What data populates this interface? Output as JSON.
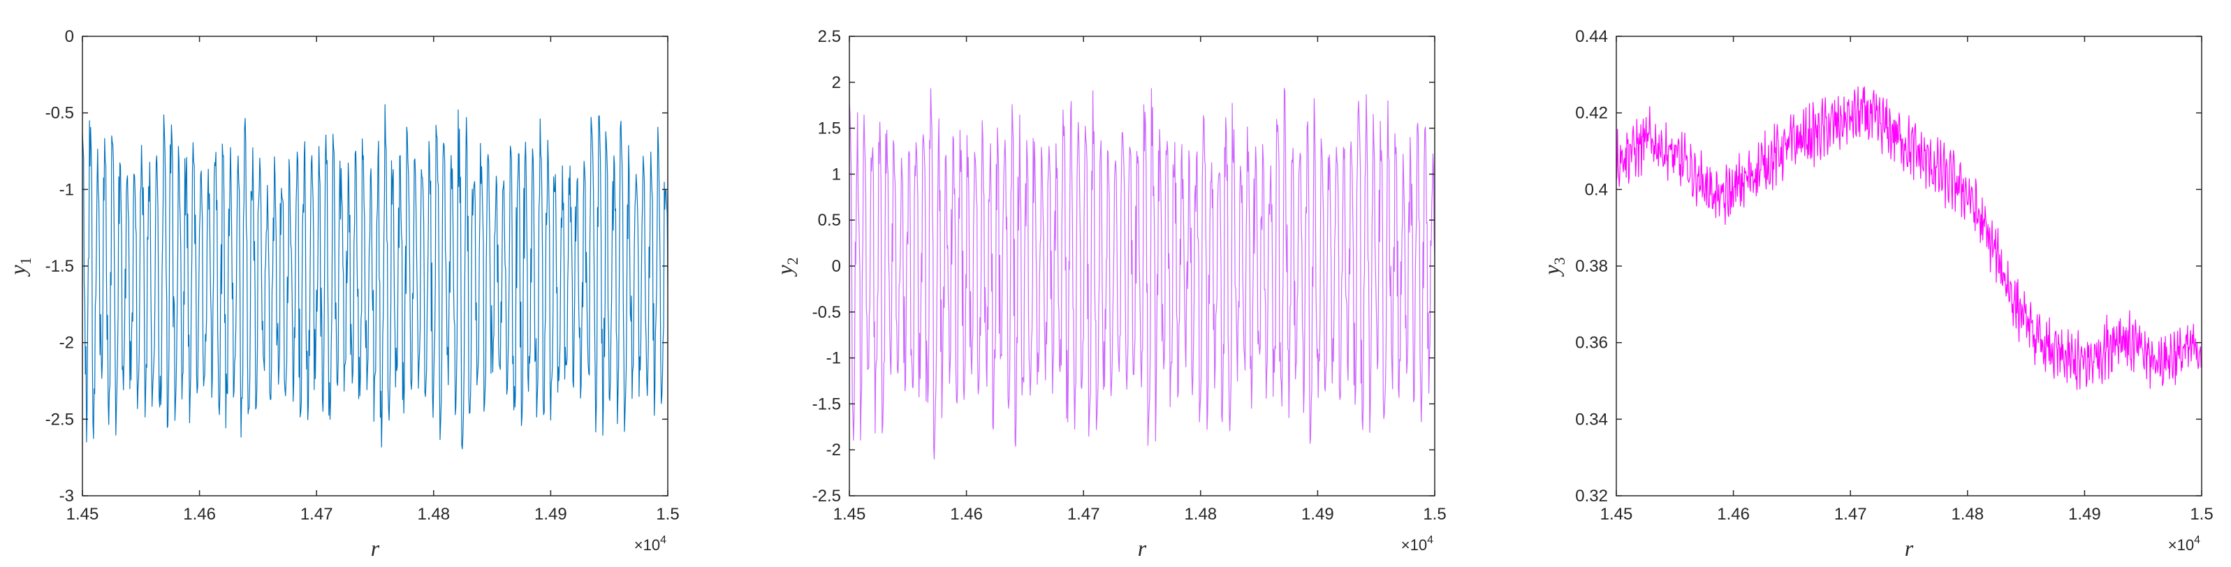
{
  "chart_data": [
    {
      "type": "line",
      "xlabel": "r",
      "ylabel": {
        "base": "y",
        "sub": "1"
      },
      "x_exponent_label": {
        "times": "×10",
        "power": "4"
      },
      "xlim": [
        14500,
        15000
      ],
      "ylim": [
        -3,
        0
      ],
      "xticks": [
        14500,
        14600,
        14700,
        14800,
        14900,
        15000
      ],
      "xtick_labels": [
        "1.45",
        "1.46",
        "1.47",
        "1.48",
        "1.49",
        "1.5"
      ],
      "yticks": [
        0,
        -0.5,
        -1,
        -1.5,
        -2,
        -2.5,
        -3
      ],
      "ytick_labels": [
        "0",
        "-0.5",
        "-1",
        "-1.5",
        "-2",
        "-2.5",
        "-3"
      ],
      "grid": false,
      "series": [
        {
          "color": "#0072BD",
          "x_range": [
            14500,
            15000
          ],
          "sample_step": 1,
          "baseline": -1.55,
          "envelope_high": -0.35,
          "envelope_low": -2.8,
          "oscillation_period": 6.3,
          "values_sample": [
            -1.2,
            -2.3,
            -0.8,
            -2.6,
            -1.0,
            -1.9,
            -0.5,
            -2.7,
            -1.4,
            -2.0,
            -0.6,
            -2.4,
            -1.1,
            -2.5,
            -0.9,
            -1.8
          ]
        }
      ]
    },
    {
      "type": "line",
      "xlabel": "r",
      "ylabel": {
        "base": "y",
        "sub": "2"
      },
      "x_exponent_label": {
        "times": "×10",
        "power": "4"
      },
      "xlim": [
        14500,
        15000
      ],
      "ylim": [
        -2.5,
        2.5
      ],
      "xticks": [
        14500,
        14600,
        14700,
        14800,
        14900,
        15000
      ],
      "xtick_labels": [
        "1.45",
        "1.46",
        "1.47",
        "1.48",
        "1.49",
        "1.5"
      ],
      "yticks": [
        2.5,
        2,
        1.5,
        1,
        0.5,
        0,
        -0.5,
        -1,
        -1.5,
        -2,
        -2.5
      ],
      "ytick_labels": [
        "2.5",
        "2",
        "1.5",
        "1",
        "0.5",
        "0",
        "-0.5",
        "-1",
        "-1.5",
        "-2",
        "-2.5"
      ],
      "grid": false,
      "series": [
        {
          "color": "#CC66FF",
          "x_range": [
            14500,
            15000
          ],
          "sample_step": 1,
          "baseline": 0,
          "envelope_high": 2.15,
          "envelope_low": -2.15,
          "oscillation_period": 6.3,
          "values_sample": [
            1.4,
            -1.2,
            0.6,
            -1.8,
            1.9,
            -0.4,
            1.1,
            -1.5,
            2.0,
            -0.9,
            0.3,
            -2.1,
            1.6,
            -0.6,
            0.9,
            -1.3
          ]
        }
      ]
    },
    {
      "type": "line",
      "xlabel": "r",
      "ylabel": {
        "base": "y",
        "sub": "3"
      },
      "x_exponent_label": {
        "times": "×10",
        "power": "4"
      },
      "xlim": [
        14500,
        15000
      ],
      "ylim": [
        0.32,
        0.44
      ],
      "xticks": [
        14500,
        14600,
        14700,
        14800,
        14900,
        15000
      ],
      "xtick_labels": [
        "1.45",
        "1.46",
        "1.47",
        "1.48",
        "1.49",
        "1.5"
      ],
      "yticks": [
        0.44,
        0.42,
        0.4,
        0.38,
        0.36,
        0.34,
        0.32
      ],
      "ytick_labels": [
        "0.44",
        "0.42",
        "0.4",
        "0.38",
        "0.36",
        "0.34",
        "0.32"
      ],
      "grid": false,
      "series": [
        {
          "color": "#FF00FF",
          "x_range": [
            14500,
            15000
          ],
          "sample_step": 1,
          "trend_x": [
            14500,
            14530,
            14560,
            14590,
            14620,
            14650,
            14680,
            14710,
            14740,
            14770,
            14800,
            14820,
            14840,
            14860,
            14880,
            14900,
            14930,
            14960,
            15000
          ],
          "trend_y": [
            0.408,
            0.413,
            0.406,
            0.397,
            0.405,
            0.412,
            0.416,
            0.42,
            0.414,
            0.406,
            0.399,
            0.386,
            0.371,
            0.36,
            0.356,
            0.354,
            0.362,
            0.355,
            0.359
          ],
          "noise_amplitude": 0.006
        }
      ]
    }
  ]
}
